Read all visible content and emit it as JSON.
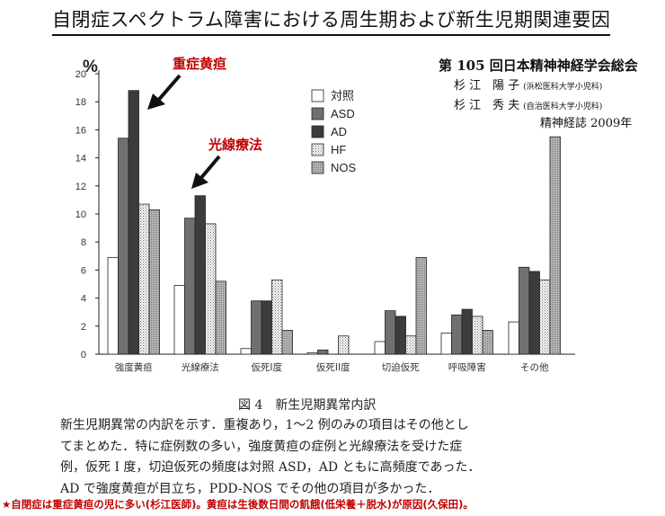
{
  "title": "自閉症スペクトラム障害における周生期および新生児期関連要因",
  "source": {
    "conference": "第 105 回日本精神神経学会総会",
    "author1": "杉 江　陽 子",
    "author1_affil": "(浜松医科大学小児科)",
    "author2": "杉 江　秀 夫",
    "author2_affil": "(自治医科大学小児科)",
    "journal": "精神経誌 2009年"
  },
  "callouts": {
    "jaundice": "重症黄疸",
    "phototherapy": "光線療法"
  },
  "caption": {
    "title": "図 4　新生児期異常内訳",
    "lines": [
      "新生児期異常の内訳を示す．重複あり，1〜2 例のみの項目はその他とし",
      "てまとめた．特に症例数の多い，強度黄疸の症例と光線療法を受けた症",
      "例，仮死 I 度，切迫仮死の頻度は対照 ASD，AD ともに高頻度であった．",
      "AD で強度黄疸が目立ち，PDD-NOS でその他の項目が多かった．"
    ]
  },
  "footnote": "★自閉症は重症黄疸の児に多い(杉江医師)。黄疸は生後数日間の飢餓(低栄養＋脱水)が原因(久保田)。",
  "chart_data": {
    "type": "bar",
    "ylabel": "%",
    "ylim": [
      0,
      20
    ],
    "yticks": [
      0,
      2,
      4,
      6,
      8,
      10,
      12,
      14,
      16,
      18,
      20
    ],
    "categories": [
      "強度黄疸",
      "光線療法",
      "仮死I度",
      "仮死II度",
      "切迫仮死",
      "呼吸障害",
      "その他"
    ],
    "series": [
      {
        "name": "対照",
        "values": [
          6.9,
          4.9,
          0.4,
          0.1,
          0.9,
          1.5,
          2.3
        ]
      },
      {
        "name": "ASD",
        "values": [
          15.4,
          9.7,
          3.8,
          0.3,
          3.1,
          2.8,
          6.2
        ]
      },
      {
        "name": "AD",
        "values": [
          18.8,
          11.3,
          3.8,
          0,
          2.7,
          3.2,
          5.9
        ]
      },
      {
        "name": "HF",
        "values": [
          10.7,
          9.3,
          5.3,
          1.3,
          1.3,
          2.7,
          5.3
        ]
      },
      {
        "name": "NOS",
        "values": [
          10.3,
          5.2,
          1.7,
          0,
          6.9,
          1.7,
          15.5
        ]
      }
    ],
    "legend_position": "top-center",
    "grid": false,
    "colors": {
      "対照": "#ffffff",
      "ASD": "#6e6e6e",
      "AD": "#3a3a3a",
      "HF": "#ffffff",
      "NOS": "#9c9c9c"
    }
  }
}
